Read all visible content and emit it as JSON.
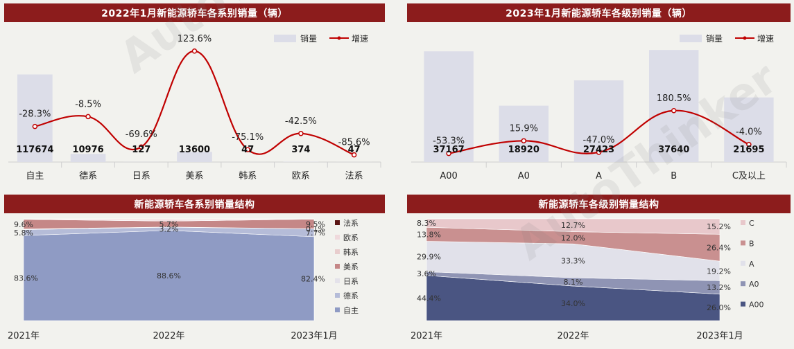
{
  "watermark": {
    "brand": "AutoThinker",
    "cn": "汽 车 智 库"
  },
  "colors": {
    "title_bg": "#8c1c1c",
    "bar": "#dcdde8",
    "line": "#c00000",
    "growth_label": "#222222",
    "value_label": "#111111"
  },
  "panels": {
    "p1": {
      "title": "2022年1月新能源轿车各系别销量（辆）",
      "legend_bar": "销量",
      "legend_line": "增速"
    },
    "p2": {
      "title": "2023年1月新能源轿车各级别销量（辆）",
      "legend_bar": "销量",
      "legend_line": "增速"
    },
    "p3": {
      "title": "新能源轿车各系别销量结构"
    },
    "p4": {
      "title": "新能源轿车各级别销量结构"
    }
  },
  "chart_data": [
    {
      "type": "bar",
      "combo": "bar+line",
      "title": "2022年1月新能源轿车各系别销量（辆）",
      "categories": [
        "自主",
        "德系",
        "日系",
        "美系",
        "韩系",
        "欧系",
        "法系"
      ],
      "series": [
        {
          "name": "销量",
          "type": "bar",
          "values": [
            117674,
            10976,
            127,
            13600,
            47,
            374,
            47
          ],
          "labels": [
            "117674",
            "10976",
            "127",
            "13600",
            "47",
            "374",
            "47"
          ]
        },
        {
          "name": "增速",
          "type": "line",
          "values": [
            -28.3,
            -8.5,
            -69.6,
            123.6,
            -75.1,
            -42.5,
            -85.6
          ],
          "labels": [
            "-28.3%",
            "-8.5%",
            "-69.6%",
            "123.6%",
            "-75.1%",
            "-42.5%",
            "-85.6%"
          ]
        }
      ],
      "ylim_bar": [
        0,
        160000
      ],
      "ylim_line": [
        -100,
        140
      ],
      "legend": "top-right"
    },
    {
      "type": "bar",
      "combo": "bar+line",
      "title": "2023年1月新能源轿车各级别销量（辆）",
      "categories": [
        "A00",
        "A0",
        "A",
        "B",
        "C及以上"
      ],
      "series": [
        {
          "name": "销量",
          "type": "bar",
          "values": [
            37167,
            18920,
            27423,
            37640,
            21695
          ],
          "labels": [
            "37167",
            "18920",
            "27423",
            "37640",
            "21695"
          ]
        },
        {
          "name": "增速",
          "type": "line",
          "values": [
            -53.3,
            15.9,
            -47.0,
            180.5,
            -4.0
          ],
          "labels": [
            "-53.3%",
            "15.9%",
            "-47.0%",
            "180.5%",
            "-4.0%"
          ]
        }
      ],
      "ylim_bar": [
        0,
        40000
      ],
      "ylim_line": [
        -100,
        550
      ],
      "legend": "top-right"
    },
    {
      "type": "area",
      "stacked": true,
      "title": "新能源轿车各系别销量结构",
      "categories": [
        "2021年",
        "2022年",
        "2023年1月"
      ],
      "series": [
        {
          "name": "自主",
          "color": "#8f9bc4",
          "values": [
            83.6,
            88.6,
            82.4
          ],
          "labels": [
            "83.6%",
            "88.6%",
            "82.4%"
          ]
        },
        {
          "name": "德系",
          "color": "#b5bcd8",
          "values": [
            5.8,
            3.2,
            7.7
          ],
          "labels": [
            "5.8%",
            "3.2%",
            "7.7%"
          ]
        },
        {
          "name": "日系",
          "color": "#e4e2ea",
          "values": [
            0.5,
            0.2,
            0.1
          ],
          "labels": [
            "",
            "",
            "0.1%"
          ]
        },
        {
          "name": "美系",
          "color": "#c58787",
          "values": [
            9.6,
            5.7,
            9.5
          ],
          "labels": [
            "9.6%",
            "5.7%",
            "9.5%"
          ]
        },
        {
          "name": "韩系",
          "color": "#e8cdcd",
          "values": [
            0.1,
            0.1,
            0.04
          ],
          "labels": [
            "",
            "",
            ""
          ]
        },
        {
          "name": "欧系",
          "color": "#efd9dc",
          "values": [
            0.3,
            1.8,
            0.26
          ],
          "labels": [
            "",
            "",
            ""
          ]
        },
        {
          "name": "法系",
          "color": "#5a1414",
          "values": [
            0.1,
            0.4,
            0.0
          ],
          "labels": [
            "",
            "",
            ""
          ]
        }
      ],
      "ylim": [
        0,
        100
      ],
      "legend": "right"
    },
    {
      "type": "area",
      "stacked": true,
      "title": "新能源轿车各级别销量结构",
      "categories": [
        "2021年",
        "2022年",
        "2023年1月"
      ],
      "series": [
        {
          "name": "A00",
          "color": "#4a5582",
          "values": [
            44.4,
            34.0,
            26.0
          ],
          "labels": [
            "44.4%",
            "34.0%",
            "26.0%"
          ]
        },
        {
          "name": "A0",
          "color": "#8f94b4",
          "values": [
            3.6,
            8.1,
            13.2
          ],
          "labels": [
            "3.6%",
            "8.1%",
            "13.2%"
          ]
        },
        {
          "name": "A",
          "color": "#e1e1ea",
          "values": [
            29.9,
            33.3,
            19.2
          ],
          "labels": [
            "29.9%",
            "33.3%",
            "19.2%"
          ]
        },
        {
          "name": "B",
          "color": "#c99090",
          "values": [
            13.8,
            12.0,
            26.4
          ],
          "labels": [
            "13.8%",
            "12.0%",
            "26.4%"
          ]
        },
        {
          "name": "C",
          "color": "#e8c8cb",
          "values": [
            8.3,
            12.7,
            15.2
          ],
          "labels": [
            "8.3%",
            "12.7%",
            "15.2%"
          ]
        }
      ],
      "ylim": [
        0,
        100
      ],
      "legend": "right"
    }
  ]
}
